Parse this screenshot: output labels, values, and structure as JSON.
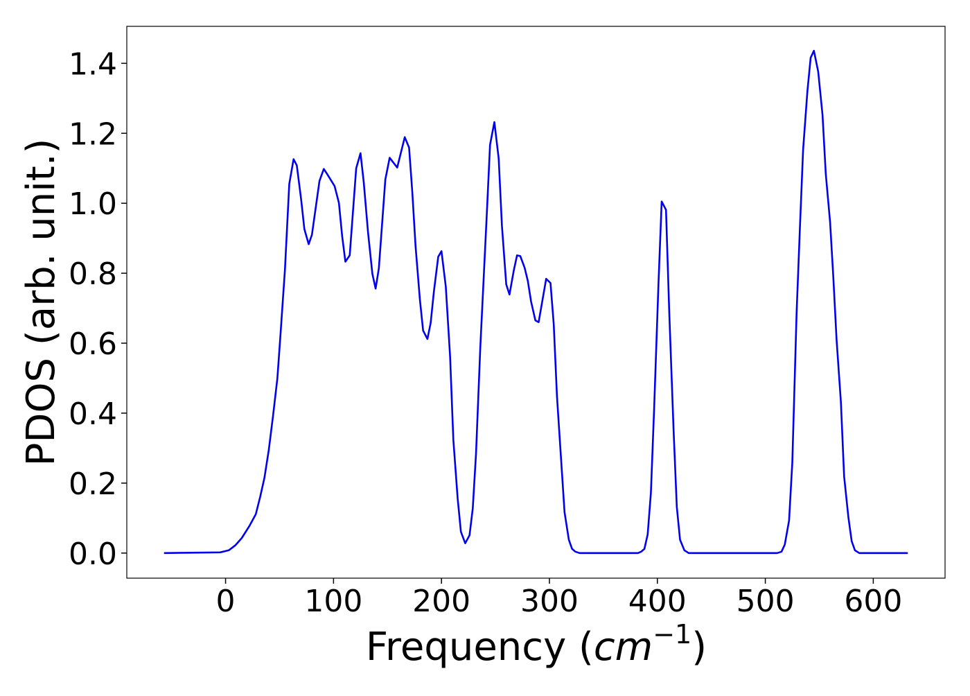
{
  "chart_data": {
    "type": "line",
    "xlabel": [
      "Frequency (",
      "cm",
      "−1",
      ")"
    ],
    "ylabel": "PDOS (arb. unit.)",
    "x": [
      -57,
      -5,
      3,
      9,
      15,
      22,
      28,
      32,
      36,
      40,
      44,
      48,
      51,
      55,
      59,
      63,
      66,
      70,
      73,
      77,
      80,
      87,
      91,
      94,
      101,
      105,
      108,
      111,
      115,
      121,
      125,
      128,
      132,
      136,
      139,
      142,
      148,
      152,
      159,
      166,
      170,
      173,
      176,
      180,
      183,
      187,
      190,
      193,
      197,
      200,
      204,
      208,
      211,
      215,
      218,
      222,
      226,
      229,
      232,
      236,
      242,
      245,
      249,
      253,
      256,
      260,
      263,
      267,
      270,
      273,
      277,
      280,
      283,
      287,
      290,
      297,
      301,
      304,
      307,
      311,
      314,
      318,
      321,
      324,
      328,
      382,
      385,
      388,
      391,
      394,
      397,
      401,
      404,
      408,
      411,
      415,
      418,
      421,
      425,
      429,
      511,
      515,
      518,
      522,
      525,
      529,
      532,
      535,
      539,
      542,
      545,
      549,
      553,
      556,
      560,
      563,
      566,
      570,
      573,
      577,
      580,
      583,
      587,
      632
    ],
    "series": [
      {
        "name": "PDOS",
        "color": "#0000ee",
        "values": [
          0,
          0.002,
          0.008,
          0.022,
          0.043,
          0.077,
          0.111,
          0.16,
          0.215,
          0.294,
          0.393,
          0.5,
          0.63,
          0.81,
          1.055,
          1.126,
          1.108,
          1.011,
          0.926,
          0.883,
          0.91,
          1.064,
          1.098,
          1.084,
          1.049,
          1.001,
          0.906,
          0.833,
          0.851,
          1.1,
          1.143,
          1.06,
          0.916,
          0.798,
          0.756,
          0.814,
          1.068,
          1.13,
          1.102,
          1.189,
          1.159,
          1.031,
          0.877,
          0.725,
          0.636,
          0.612,
          0.658,
          0.748,
          0.847,
          0.863,
          0.762,
          0.561,
          0.324,
          0.156,
          0.061,
          0.028,
          0.051,
          0.128,
          0.284,
          0.59,
          0.97,
          1.167,
          1.232,
          1.128,
          0.936,
          0.768,
          0.739,
          0.808,
          0.851,
          0.849,
          0.816,
          0.778,
          0.719,
          0.665,
          0.66,
          0.784,
          0.772,
          0.654,
          0.448,
          0.259,
          0.117,
          0.038,
          0.012,
          0.004,
          0,
          0,
          0.004,
          0.012,
          0.053,
          0.172,
          0.413,
          0.768,
          1.005,
          0.981,
          0.689,
          0.353,
          0.132,
          0.038,
          0.008,
          0,
          0,
          0.004,
          0.024,
          0.093,
          0.259,
          0.689,
          0.926,
          1.153,
          1.321,
          1.416,
          1.436,
          1.376,
          1.252,
          1.084,
          0.946,
          0.788,
          0.61,
          0.432,
          0.219,
          0.101,
          0.034,
          0.008,
          0,
          0
        ]
      }
    ],
    "xlim": [
      -91.5,
      666.5
    ],
    "ylim": [
      -0.0717,
      1.5057
    ],
    "xticks": [
      0,
      100,
      200,
      300,
      400,
      500,
      600
    ],
    "yticks": [
      {
        "value": 0,
        "label": "0.0"
      },
      0.2,
      0.4,
      0.6,
      0.8,
      {
        "value": 1,
        "label": "1.0"
      },
      1.2,
      1.4
    ]
  }
}
